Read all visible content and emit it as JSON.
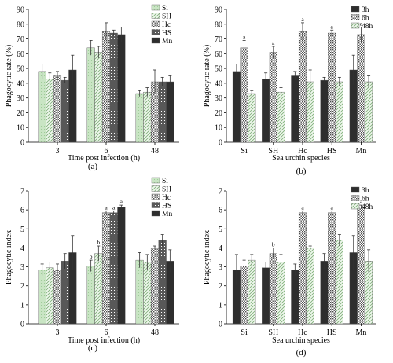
{
  "pattern_colors": {
    "Si": {
      "base": "#c9e5c4",
      "ink": "#9fcb99"
    },
    "SH": {
      "base": "#eef7ec",
      "ink": "#7fae79"
    },
    "Hc": {
      "base": "#ffffff",
      "ink": "#4a4a4a"
    },
    "HS": {
      "base": "#585858",
      "ink": "#ffffff"
    },
    "Mn": {
      "base": "#2e2e2e",
      "ink": "#2e2e2e"
    },
    "3h": {
      "base": "#2e2e2e",
      "ink": "#2e2e2e"
    },
    "6h": {
      "base": "#ffffff",
      "ink": "#4a4a4a"
    },
    "48h": {
      "base": "#eef7ec",
      "ink": "#7fae79"
    }
  },
  "chart_data": [
    {
      "id": "a",
      "type": "bar",
      "panel_label": "(a)",
      "xlabel": "Time post infection (h)",
      "ylabel": "Phagocytic rate (%)",
      "ylim": [
        0,
        90
      ],
      "yticks": [
        0,
        10,
        20,
        30,
        40,
        50,
        60,
        70,
        80,
        90
      ],
      "categories": [
        "3",
        "6",
        "48"
      ],
      "legend_position": "top-right",
      "series": [
        {
          "name": "Si",
          "pattern": "Si",
          "values": [
            48,
            64,
            33
          ],
          "errors": [
            5,
            5,
            2
          ],
          "sig": [
            "",
            "",
            ""
          ]
        },
        {
          "name": "SH",
          "pattern": "SH",
          "values": [
            43,
            61,
            34
          ],
          "errors": [
            4,
            4,
            3
          ],
          "sig": [
            "",
            "",
            ""
          ]
        },
        {
          "name": "Hc",
          "pattern": "Hc",
          "values": [
            45,
            75,
            41
          ],
          "errors": [
            3,
            6,
            8
          ],
          "sig": [
            "",
            "",
            ""
          ]
        },
        {
          "name": "HS",
          "pattern": "HS",
          "values": [
            42,
            74,
            41
          ],
          "errors": [
            2,
            2,
            3
          ],
          "sig": [
            "",
            "",
            ""
          ]
        },
        {
          "name": "Mn",
          "pattern": "Mn",
          "values": [
            49,
            73,
            41
          ],
          "errors": [
            10,
            5,
            4
          ],
          "sig": [
            "",
            "",
            ""
          ]
        }
      ]
    },
    {
      "id": "b",
      "type": "bar",
      "panel_label": "(b)",
      "xlabel": "Sea urchin species",
      "ylabel": "Phagocytic rate (%)",
      "ylim": [
        0,
        90
      ],
      "yticks": [
        0,
        10,
        20,
        30,
        40,
        50,
        60,
        70,
        80,
        90
      ],
      "categories": [
        "Si",
        "SH",
        "Hc",
        "HS",
        "Mn"
      ],
      "legend_position": "top-right",
      "series": [
        {
          "name": "3h",
          "pattern": "3h",
          "values": [
            48,
            43,
            45,
            42,
            49
          ],
          "errors": [
            5,
            4,
            3,
            2,
            10
          ],
          "sig": [
            "",
            "",
            "",
            "",
            ""
          ]
        },
        {
          "name": "6h",
          "pattern": "6h",
          "values": [
            64,
            61,
            75,
            74,
            73
          ],
          "errors": [
            5,
            4,
            6,
            2,
            5
          ],
          "sig": [
            "a",
            "a",
            "a",
            "a",
            "a"
          ]
        },
        {
          "name": "48h",
          "pattern": "48h",
          "values": [
            33,
            34,
            41,
            41,
            41
          ],
          "errors": [
            2,
            3,
            8,
            3,
            4
          ],
          "sig": [
            "",
            "",
            "",
            "",
            ""
          ]
        }
      ]
    },
    {
      "id": "c",
      "type": "bar",
      "panel_label": "(c)",
      "xlabel": "Time post infection (h)",
      "ylabel": "Phagocytic index",
      "ylim": [
        0,
        7
      ],
      "yticks": [
        0,
        1,
        2,
        3,
        4,
        5,
        6,
        7
      ],
      "categories": [
        "3",
        "6",
        "48"
      ],
      "legend_position": "top-right",
      "series": [
        {
          "name": "Si",
          "pattern": "Si",
          "values": [
            2.85,
            3.05,
            3.35
          ],
          "errors": [
            0.3,
            0.3,
            0.4
          ],
          "sig": [
            "",
            "b",
            ""
          ]
        },
        {
          "name": "SH",
          "pattern": "SH",
          "values": [
            2.95,
            3.7,
            3.25
          ],
          "errors": [
            0.3,
            0.4,
            0.4
          ],
          "sig": [
            "",
            "b",
            ""
          ]
        },
        {
          "name": "Hc",
          "pattern": "Hc",
          "values": [
            2.85,
            5.85,
            4.0
          ],
          "errors": [
            0.3,
            0.1,
            0.1
          ],
          "sig": [
            "",
            "a",
            ""
          ]
        },
        {
          "name": "HS",
          "pattern": "HS",
          "values": [
            3.3,
            5.85,
            4.4
          ],
          "errors": [
            0.4,
            0.1,
            0.3
          ],
          "sig": [
            "",
            "a",
            ""
          ]
        },
        {
          "name": "Mn",
          "pattern": "Mn",
          "values": [
            3.75,
            6.15,
            3.3
          ],
          "errors": [
            0.9,
            0.1,
            0.6
          ],
          "sig": [
            "",
            "a",
            ""
          ]
        }
      ]
    },
    {
      "id": "d",
      "type": "bar",
      "panel_label": "(d)",
      "xlabel": "Sea urchin species",
      "ylabel": "Phagocytic index",
      "ylim": [
        0,
        7
      ],
      "yticks": [
        0,
        1,
        2,
        3,
        4,
        5,
        6,
        7
      ],
      "categories": [
        "Si",
        "SH",
        "Hc",
        "HS",
        "Mn"
      ],
      "legend_position": "top-right",
      "series": [
        {
          "name": "3h",
          "pattern": "3h",
          "values": [
            2.85,
            2.95,
            2.85,
            3.3,
            3.75
          ],
          "errors": [
            0.8,
            0.3,
            0.3,
            0.4,
            0.9
          ],
          "sig": [
            "",
            "",
            "",
            "",
            ""
          ]
        },
        {
          "name": "6h",
          "pattern": "6h",
          "values": [
            3.05,
            3.7,
            5.85,
            5.85,
            6.15
          ],
          "errors": [
            0.3,
            0.3,
            0.1,
            0.1,
            0.1
          ],
          "sig": [
            "",
            "b",
            "a",
            "a",
            "a"
          ]
        },
        {
          "name": "48h",
          "pattern": "48h",
          "values": [
            3.35,
            3.25,
            4.0,
            4.4,
            3.3
          ],
          "errors": [
            0.3,
            0.4,
            0.1,
            0.3,
            0.6
          ],
          "sig": [
            "",
            "",
            "",
            "",
            ""
          ]
        }
      ]
    }
  ]
}
